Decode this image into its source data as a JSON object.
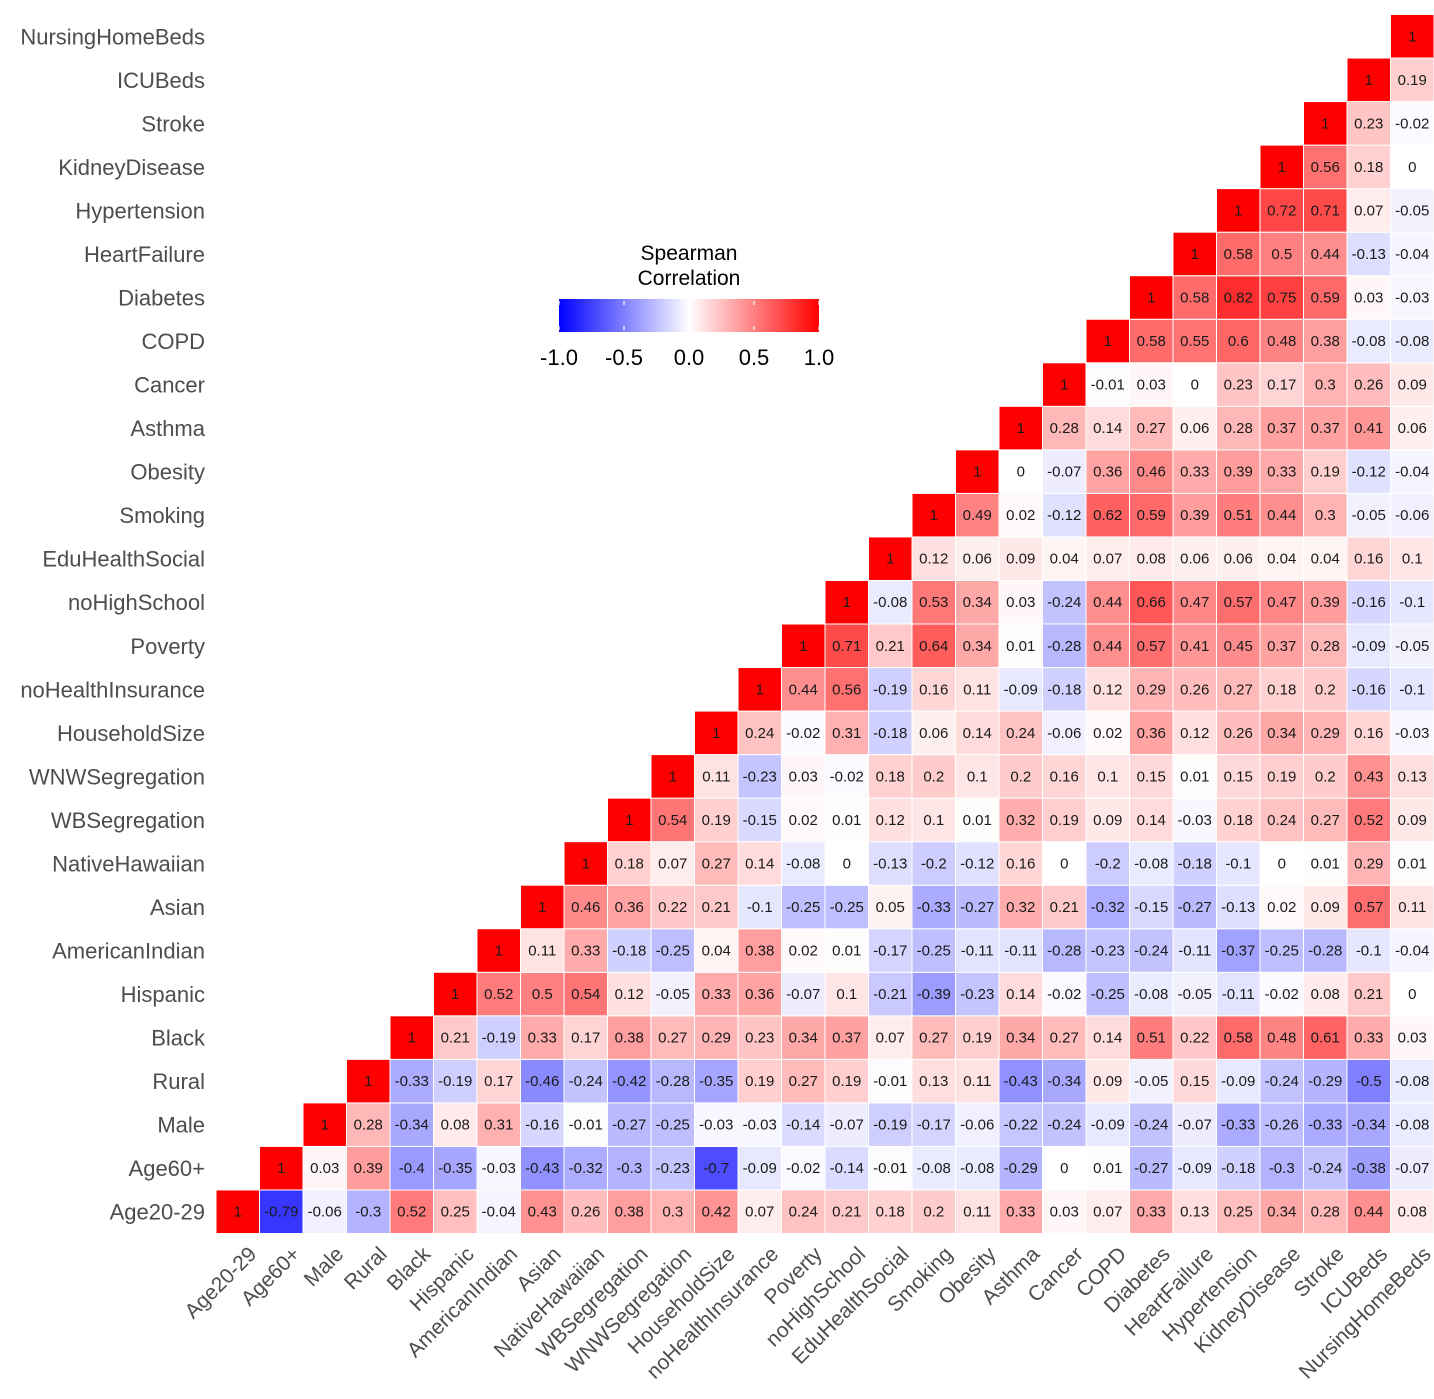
{
  "chart_data": {
    "type": "heatmap",
    "variables": [
      "Age20-29",
      "Age60+",
      "Male",
      "Rural",
      "Black",
      "Hispanic",
      "AmericanIndian",
      "Asian",
      "NativeHawaiian",
      "WBSegregation",
      "WNWSegregation",
      "HouseholdSize",
      "noHealthInsurance",
      "Poverty",
      "noHighSchool",
      "EduHealthSocial",
      "Smoking",
      "Obesity",
      "Asthma",
      "Cancer",
      "COPD",
      "Diabetes",
      "HeartFailure",
      "Hypertension",
      "KidneyDisease",
      "Stroke",
      "ICUBeds",
      "NursingHomeBeds"
    ],
    "value_labels": [
      [
        "1"
      ],
      [
        "-0.79",
        "1"
      ],
      [
        "-0.06",
        "0.03",
        "1"
      ],
      [
        "-0.3",
        "0.39",
        "0.28",
        "1"
      ],
      [
        "0.52",
        "-0.4",
        "-0.34",
        "-0.33",
        "1"
      ],
      [
        "0.25",
        "-0.35",
        "0.08",
        "-0.19",
        "0.21",
        "1"
      ],
      [
        "-0.04",
        "-0.03",
        "0.31",
        "0.17",
        "-0.19",
        "0.52",
        "1"
      ],
      [
        "0.43",
        "-0.43",
        "-0.16",
        "-0.46",
        "0.33",
        "0.5",
        "0.11",
        "1"
      ],
      [
        "0.26",
        "-0.32",
        "-0.01",
        "-0.24",
        "0.17",
        "0.54",
        "0.33",
        "0.46",
        "1"
      ],
      [
        "0.38",
        "-0.3",
        "-0.27",
        "-0.42",
        "0.38",
        "0.12",
        "-0.18",
        "0.36",
        "0.18",
        "1"
      ],
      [
        "0.3",
        "-0.23",
        "-0.25",
        "-0.28",
        "0.27",
        "-0.05",
        "-0.25",
        "0.22",
        "0.07",
        "0.54",
        "1"
      ],
      [
        "0.42",
        "-0.7",
        "-0.03",
        "-0.35",
        "0.29",
        "0.33",
        "0.04",
        "0.21",
        "0.27",
        "0.19",
        "0.11",
        "1"
      ],
      [
        "0.07",
        "-0.09",
        "-0.03",
        "0.19",
        "0.23",
        "0.36",
        "0.38",
        "-0.1",
        "0.14",
        "-0.15",
        "-0.23",
        "0.24",
        "1"
      ],
      [
        "0.24",
        "-0.02",
        "-0.14",
        "0.27",
        "0.34",
        "-0.07",
        "0.02",
        "-0.25",
        "-0.08",
        "0.02",
        "0.03",
        "-0.02",
        "0.44",
        "1"
      ],
      [
        "0.21",
        "-0.14",
        "-0.07",
        "0.19",
        "0.37",
        "0.1",
        "0.01",
        "-0.25",
        "0",
        "0.01",
        "-0.02",
        "0.31",
        "0.56",
        "0.71",
        "1"
      ],
      [
        "0.18",
        "-0.01",
        "-0.19",
        "-0.01",
        "0.07",
        "-0.21",
        "-0.17",
        "0.05",
        "-0.13",
        "0.12",
        "0.18",
        "-0.18",
        "-0.19",
        "0.21",
        "-0.08",
        "1"
      ],
      [
        "0.2",
        "-0.08",
        "-0.17",
        "0.13",
        "0.27",
        "-0.39",
        "-0.25",
        "-0.33",
        "-0.2",
        "0.1",
        "0.2",
        "0.06",
        "0.16",
        "0.64",
        "0.53",
        "0.12",
        "1"
      ],
      [
        "0.11",
        "-0.08",
        "-0.06",
        "0.11",
        "0.19",
        "-0.23",
        "-0.11",
        "-0.27",
        "-0.12",
        "0.01",
        "0.1",
        "0.14",
        "0.11",
        "0.34",
        "0.34",
        "0.06",
        "0.49",
        "1"
      ],
      [
        "0.33",
        "-0.29",
        "-0.22",
        "-0.43",
        "0.34",
        "0.14",
        "-0.11",
        "0.32",
        "0.16",
        "0.32",
        "0.2",
        "0.24",
        "-0.09",
        "0.01",
        "0.03",
        "0.09",
        "0.02",
        "0",
        "1"
      ],
      [
        "0.03",
        "0",
        "-0.24",
        "-0.34",
        "0.27",
        "-0.02",
        "-0.28",
        "0.21",
        "0",
        "0.19",
        "0.16",
        "-0.06",
        "-0.18",
        "-0.28",
        "-0.24",
        "0.04",
        "-0.12",
        "-0.07",
        "0.28",
        "1"
      ],
      [
        "0.07",
        "0.01",
        "-0.09",
        "0.09",
        "0.14",
        "-0.25",
        "-0.23",
        "-0.32",
        "-0.2",
        "0.09",
        "0.1",
        "0.02",
        "0.12",
        "0.44",
        "0.44",
        "0.07",
        "0.62",
        "0.36",
        "0.14",
        "-0.01",
        "1"
      ],
      [
        "0.33",
        "-0.27",
        "-0.24",
        "-0.05",
        "0.51",
        "-0.08",
        "-0.24",
        "-0.15",
        "-0.08",
        "0.14",
        "0.15",
        "0.36",
        "0.29",
        "0.57",
        "0.66",
        "0.08",
        "0.59",
        "0.46",
        "0.27",
        "0.03",
        "0.58",
        "1"
      ],
      [
        "0.13",
        "-0.09",
        "-0.07",
        "0.15",
        "0.22",
        "-0.05",
        "-0.11",
        "-0.27",
        "-0.18",
        "-0.03",
        "0.01",
        "0.12",
        "0.26",
        "0.41",
        "0.47",
        "0.06",
        "0.39",
        "0.33",
        "0.06",
        "0",
        "0.55",
        "0.58",
        "1"
      ],
      [
        "0.25",
        "-0.18",
        "-0.33",
        "-0.09",
        "0.58",
        "-0.11",
        "-0.37",
        "-0.13",
        "-0.1",
        "0.18",
        "0.15",
        "0.26",
        "0.27",
        "0.45",
        "0.57",
        "0.06",
        "0.51",
        "0.39",
        "0.28",
        "0.23",
        "0.6",
        "0.82",
        "0.58",
        "1"
      ],
      [
        "0.34",
        "-0.3",
        "-0.26",
        "-0.24",
        "0.48",
        "-0.02",
        "-0.25",
        "0.02",
        "0",
        "0.24",
        "0.19",
        "0.34",
        "0.18",
        "0.37",
        "0.47",
        "0.04",
        "0.44",
        "0.33",
        "0.37",
        "0.17",
        "0.48",
        "0.75",
        "0.5",
        "0.72",
        "1"
      ],
      [
        "0.28",
        "-0.24",
        "-0.33",
        "-0.29",
        "0.61",
        "0.08",
        "-0.28",
        "0.09",
        "0.01",
        "0.27",
        "0.2",
        "0.29",
        "0.2",
        "0.28",
        "0.39",
        "0.04",
        "0.3",
        "0.19",
        "0.37",
        "0.3",
        "0.38",
        "0.59",
        "0.44",
        "0.71",
        "0.56",
        "1"
      ],
      [
        "0.44",
        "-0.38",
        "-0.34",
        "-0.5",
        "0.33",
        "0.21",
        "-0.1",
        "0.57",
        "0.29",
        "0.52",
        "0.43",
        "0.16",
        "-0.16",
        "-0.09",
        "-0.16",
        "0.16",
        "-0.05",
        "-0.12",
        "0.41",
        "0.26",
        "-0.08",
        "0.03",
        "-0.13",
        "0.07",
        "0.18",
        "0.23",
        "1"
      ],
      [
        "0.08",
        "-0.07",
        "-0.08",
        "-0.08",
        "0.03",
        "0",
        "-0.04",
        "0.11",
        "0.01",
        "0.09",
        "0.13",
        "-0.03",
        "-0.1",
        "-0.05",
        "-0.1",
        "0.1",
        "-0.06",
        "-0.04",
        "0.06",
        "0.09",
        "-0.08",
        "-0.03",
        "-0.04",
        "-0.05",
        "0",
        "-0.02",
        "0.19",
        "1"
      ]
    ],
    "legend": {
      "title_lines": [
        "Spearman",
        "Correlation"
      ],
      "tick_values": [
        -1.0,
        -0.5,
        0.0,
        0.5,
        1.0
      ],
      "tick_labels": [
        "-1.0",
        "-0.5",
        "0.0",
        "0.5",
        "1.0"
      ],
      "range": [
        -1,
        1
      ],
      "low_color": "#0000FF",
      "mid_color": "#FFFFFF",
      "high_color": "#FF0000"
    },
    "grid": false,
    "triangle": "lower"
  }
}
